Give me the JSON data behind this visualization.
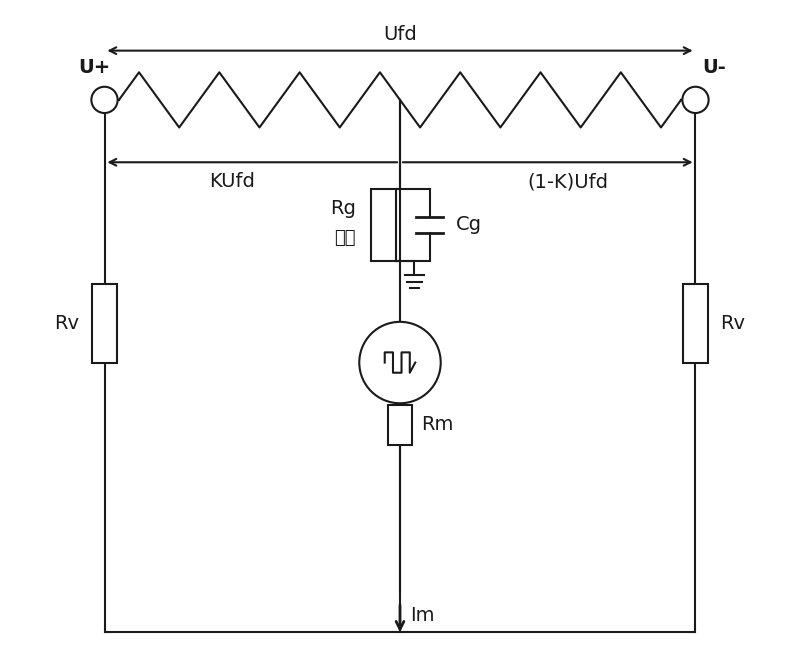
{
  "bg_color": "#ffffff",
  "line_color": "#1a1a1a",
  "labels": {
    "Ufd": "Ufd",
    "KUfd": "KUfd",
    "one_minus_K_Ufd": "(1-K)Ufd",
    "Rg": "Rg",
    "dazhou": "大轴",
    "Cg": "Cg",
    "Rv_left": "Rv",
    "Rv_right": "Rv",
    "Rm": "Rm",
    "Im": "Im",
    "Uplus": "U+",
    "Uminus": "U-"
  },
  "font_size": 14,
  "fig_width": 8.0,
  "fig_height": 6.66
}
